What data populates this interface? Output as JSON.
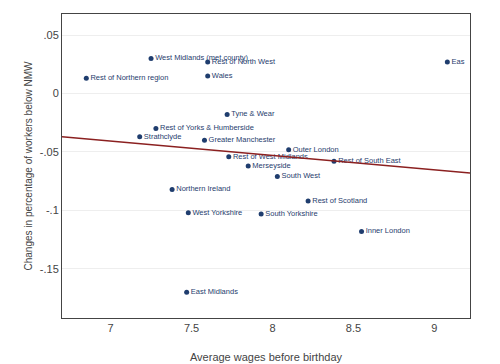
{
  "chart_data": {
    "type": "scatter",
    "xlabel": "Average wages before birthday",
    "ylabel": "Changes in percentage of workers below NMW",
    "grid": "y",
    "series": [
      {
        "type": "scatter",
        "marker": "circle",
        "color": "#1f3d6e",
        "x": [
          7.25,
          7.6,
          6.85,
          7.6,
          7.72,
          7.28,
          7.18,
          7.58,
          8.1,
          7.73,
          7.85,
          8.38,
          8.03,
          7.38,
          8.22,
          7.48,
          7.93,
          8.55,
          7.47,
          9.08
        ],
        "values": [
          0.03,
          0.027,
          0.013,
          0.015,
          -0.018,
          -0.03,
          -0.037,
          -0.04,
          -0.048,
          -0.054,
          -0.062,
          -0.058,
          -0.071,
          -0.082,
          -0.092,
          -0.102,
          -0.103,
          -0.118,
          -0.17,
          0.027
        ],
        "labels": [
          "West Midlands (met.county)",
          "Rest of North West",
          "Rest of Northern region",
          "Wales",
          "Tyne & Wear",
          "Rest of Yorks & Humberside",
          "Strathclyde",
          "Greater Manchester",
          "Outer London",
          "Rest of West Midlands",
          "Merseyside",
          "Rest of South East",
          "South West",
          "Northern Ireland",
          "Rest of Scotland",
          "West Yorkshire",
          "South Yorkshire",
          "Inner London",
          "East Midlands",
          "Eas"
        ]
      },
      {
        "type": "line",
        "line_style": "solid",
        "color": "#8b2020",
        "x": [
          6.7,
          9.22
        ],
        "values": [
          -0.037,
          -0.068
        ]
      }
    ],
    "xlim": [
      6.7,
      9.22
    ],
    "ylim": [
      -0.192,
      0.068
    ],
    "xticks": [
      7,
      7.5,
      8,
      8.5,
      9
    ],
    "yticks": [
      {
        "value": 0.05,
        "label": ".05"
      },
      0,
      {
        "value": -0.05,
        "label": "-.05"
      },
      {
        "value": -0.1,
        "label": "-.1"
      },
      {
        "value": -0.15,
        "label": "-.15"
      }
    ]
  }
}
